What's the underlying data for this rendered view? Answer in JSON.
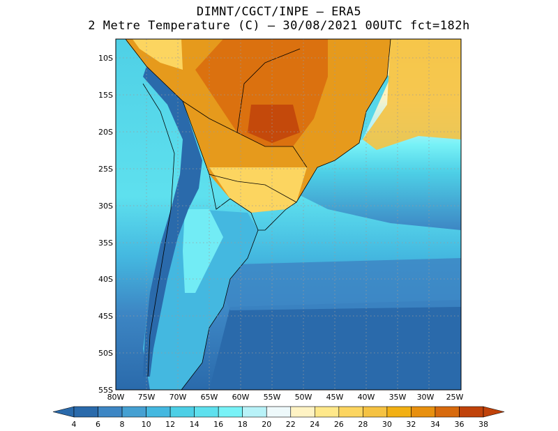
{
  "header": {
    "title_line1": "DIMNT/CGCT/INPE –  ERA5",
    "title_line2": "2 Metre Temperature (C) –  30/08/2021 00UTC fct=182h"
  },
  "map": {
    "lat_labels": [
      "10S",
      "15S",
      "20S",
      "25S",
      "30S",
      "35S",
      "40S",
      "45S",
      "50S",
      "55S"
    ],
    "lon_labels": [
      "80W",
      "75W",
      "70W",
      "65W",
      "60W",
      "55W",
      "50W",
      "45W",
      "40W",
      "35W",
      "30W",
      "25W"
    ],
    "gridlines": true,
    "land_fill": "#e69a1c",
    "ocean_fill": "#5cd4e4"
  },
  "colorbar": {
    "labels": [
      "4",
      "6",
      "8",
      "10",
      "12",
      "14",
      "16",
      "18",
      "20",
      "22",
      "24",
      "26",
      "28",
      "30",
      "32",
      "34",
      "36",
      "38"
    ],
    "colors": [
      "#2a6aab",
      "#3d86c4",
      "#45a0d2",
      "#44b8e0",
      "#4dcfe6",
      "#5ee0ee",
      "#78f2f7",
      "#b8f2f8",
      "#eef9fb",
      "#fff3c4",
      "#ffe88a",
      "#fcd560",
      "#f5c242",
      "#f2b014",
      "#e8900f",
      "#d86a0d",
      "#c0420a"
    ]
  }
}
